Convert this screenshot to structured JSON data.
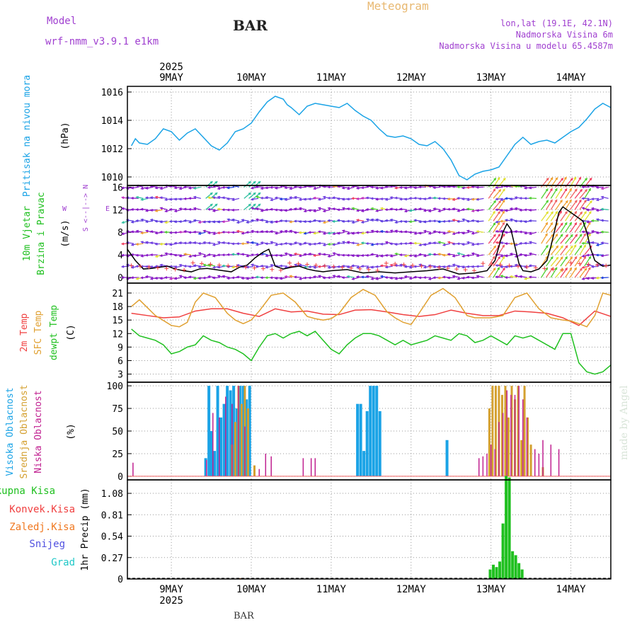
{
  "header": {
    "model_label": "Model",
    "model_value": "wrf-nmm_v3.9.1  e1km",
    "station": "BAR",
    "meteogram": "Meteogram",
    "coords": "lon,lat (19.1E, 42.1N)",
    "elevation": "Nadmorska Visina 6m",
    "model_elevation": "Nadmorska Visina u modelu 65.4587m",
    "footer_station": "BAR",
    "watermark": "made by Angel"
  },
  "colors": {
    "pressure": "#1aa3e6",
    "temp2m": "#f04040",
    "sfc": "#e0a030",
    "dew": "#20c020",
    "high": "#1aa3e6",
    "mid": "#d4a030",
    "low": "#c02090",
    "total": "#20c020",
    "conv": "#f04040",
    "frozen": "#f07820",
    "snow": "#5050e0",
    "hail": "#20c8c8",
    "meteogram": "#e8b870",
    "purple": "#a040d0",
    "wind_speed": "#000000"
  },
  "chart_data": [
    {
      "type": "line",
      "id": "pressure",
      "ylabel_color_lines": [
        "Pritisak na nivou mora"
      ],
      "unit": "(hPa)",
      "yticks": [
        1010,
        1012,
        1014,
        1016
      ],
      "ylim": [
        1009.4,
        1016.4
      ],
      "xlim_days": [
        8.45,
        14.5
      ],
      "day_ticks": [
        "9MAY",
        "10MAY",
        "11MAY",
        "12MAY",
        "13MAY",
        "14MAY"
      ],
      "year_label": "2025",
      "series": [
        {
          "x": [
            8.5,
            8.55,
            8.6,
            8.7,
            8.8,
            8.9,
            9.0,
            9.1,
            9.2,
            9.3,
            9.4,
            9.5,
            9.6,
            9.7,
            9.75,
            9.8,
            9.9,
            10.0,
            10.1,
            10.2,
            10.3,
            10.4,
            10.45,
            10.5,
            10.6,
            10.7,
            10.8,
            10.9,
            11.0,
            11.1,
            11.2,
            11.3,
            11.4,
            11.5,
            11.6,
            11.7,
            11.8,
            11.9,
            12.0,
            12.1,
            12.2,
            12.3,
            12.4,
            12.5,
            12.6,
            12.7,
            12.8,
            12.9,
            13.0,
            13.1,
            13.2,
            13.3,
            13.4,
            13.5,
            13.6,
            13.7,
            13.8,
            13.9,
            14.0,
            14.1,
            14.2,
            14.3,
            14.4,
            14.5
          ],
          "y": [
            1012.2,
            1012.7,
            1012.4,
            1012.3,
            1012.7,
            1013.4,
            1013.2,
            1012.6,
            1013.1,
            1013.4,
            1012.8,
            1012.2,
            1011.9,
            1012.4,
            1012.8,
            1013.2,
            1013.4,
            1013.8,
            1014.6,
            1015.3,
            1015.7,
            1015.5,
            1015.1,
            1014.9,
            1014.4,
            1015.0,
            1015.2,
            1015.1,
            1015.0,
            1014.9,
            1015.2,
            1014.7,
            1014.3,
            1014.0,
            1013.4,
            1012.9,
            1012.8,
            1012.9,
            1012.7,
            1012.3,
            1012.2,
            1012.5,
            1012.0,
            1011.2,
            1010.1,
            1009.8,
            1010.2,
            1010.4,
            1010.5,
            1010.7,
            1011.5,
            1012.3,
            1012.8,
            1012.3,
            1012.5,
            1012.6,
            1012.4,
            1012.8,
            1013.2,
            1013.5,
            1014.1,
            1014.8,
            1015.2,
            1014.9
          ]
        }
      ]
    },
    {
      "type": "line",
      "id": "wind",
      "ylabel_color_lines": [
        "10m Vjetar",
        "Brzina i Pravac"
      ],
      "unit": "(m/s)",
      "compass": {
        "north": "N",
        "south": "S",
        "east": "E",
        "west": "W",
        "arrow": "<--|-->"
      },
      "yticks": [
        0,
        4,
        8,
        12,
        16
      ],
      "ylim": [
        -1,
        16.3
      ],
      "xlim_days": [
        8.45,
        14.5
      ],
      "arrow_rows": [
        0,
        2,
        4,
        6,
        8,
        10,
        12,
        14,
        16
      ],
      "series": [
        {
          "name": "speed",
          "x": [
            8.45,
            8.55,
            8.65,
            8.75,
            8.85,
            8.95,
            9.05,
            9.15,
            9.25,
            9.35,
            9.45,
            9.55,
            9.65,
            9.75,
            9.85,
            9.95,
            10.05,
            10.15,
            10.22,
            10.3,
            10.4,
            10.5,
            10.6,
            10.7,
            10.8,
            10.9,
            11.0,
            11.2,
            11.4,
            11.6,
            11.8,
            12.0,
            12.2,
            12.4,
            12.6,
            12.8,
            12.95,
            13.05,
            13.1,
            13.15,
            13.2,
            13.25,
            13.3,
            13.35,
            13.4,
            13.5,
            13.6,
            13.7,
            13.75,
            13.8,
            13.85,
            13.9,
            13.95,
            14.05,
            14.15,
            14.2,
            14.25,
            14.3,
            14.35,
            14.4,
            14.5
          ],
          "y": [
            5,
            3,
            1.5,
            1.6,
            1.8,
            2.0,
            1.5,
            1.2,
            1.0,
            1.5,
            1.6,
            1.4,
            1.2,
            1.0,
            1.8,
            2.2,
            3.5,
            4.5,
            5.0,
            2.0,
            1.5,
            1.8,
            2.0,
            1.5,
            1.2,
            1.0,
            1.2,
            1.4,
            0.8,
            1.0,
            0.8,
            1.0,
            1.2,
            1.5,
            0.6,
            0.8,
            1.2,
            3.0,
            5.5,
            8.0,
            9.5,
            8.5,
            5.5,
            2.5,
            1.2,
            1.0,
            1.5,
            3.0,
            5.5,
            8.5,
            11.5,
            12.5,
            12.0,
            11.0,
            10.0,
            8.0,
            5.0,
            3.0,
            2.5,
            2.0,
            2.2
          ]
        }
      ]
    },
    {
      "type": "line",
      "id": "temperature",
      "ylabel_lines": [
        "2m Temp",
        "SFC Temp",
        "dewpt Temp"
      ],
      "unit": "(C)",
      "yticks": [
        3,
        6,
        9,
        12,
        15,
        18,
        21
      ],
      "ylim": [
        1.2,
        23.2
      ],
      "xlim_days": [
        8.45,
        14.5
      ],
      "series": [
        {
          "name": "2m Temp",
          "x": [
            8.5,
            8.7,
            8.9,
            9.1,
            9.3,
            9.5,
            9.7,
            9.9,
            10.1,
            10.3,
            10.5,
            10.7,
            10.9,
            11.1,
            11.3,
            11.5,
            11.7,
            11.9,
            12.1,
            12.3,
            12.5,
            12.7,
            12.9,
            13.1,
            13.3,
            13.5,
            13.7,
            13.9,
            14.1,
            14.3,
            14.5
          ],
          "y": [
            16.5,
            16.0,
            15.5,
            15.7,
            17.0,
            17.5,
            17.5,
            16.5,
            15.8,
            17.5,
            16.8,
            17.0,
            16.3,
            16.2,
            17.2,
            17.3,
            16.8,
            16.2,
            15.8,
            16.2,
            17.2,
            16.5,
            16.0,
            16.0,
            17.0,
            16.8,
            16.5,
            15.5,
            13.8,
            17.0,
            15.8
          ]
        },
        {
          "name": "SFC Temp",
          "x": [
            8.5,
            8.6,
            8.8,
            9.0,
            9.1,
            9.2,
            9.3,
            9.4,
            9.55,
            9.7,
            9.8,
            9.9,
            10.0,
            10.1,
            10.25,
            10.4,
            10.55,
            10.7,
            10.8,
            10.9,
            11.0,
            11.1,
            11.25,
            11.4,
            11.55,
            11.7,
            11.8,
            11.9,
            12.0,
            12.1,
            12.25,
            12.4,
            12.55,
            12.7,
            12.8,
            12.9,
            13.0,
            13.15,
            13.3,
            13.45,
            13.6,
            13.75,
            13.9,
            14.0,
            14.1,
            14.2,
            14.3,
            14.4,
            14.5
          ],
          "y": [
            18.0,
            19.5,
            16.0,
            13.8,
            13.5,
            14.5,
            19.0,
            21.0,
            20.0,
            16.5,
            15.0,
            14.2,
            15.0,
            17.0,
            20.5,
            21.0,
            19.0,
            15.8,
            15.3,
            15.0,
            15.3,
            16.5,
            20.0,
            21.8,
            20.5,
            16.8,
            15.5,
            14.5,
            14.0,
            16.5,
            20.5,
            22.0,
            20.0,
            16.0,
            15.5,
            15.5,
            15.5,
            16.0,
            20.0,
            21.0,
            17.5,
            15.5,
            15.0,
            14.8,
            14.2,
            13.5,
            16.0,
            21.0,
            20.5
          ]
        },
        {
          "name": "dewpt Temp",
          "x": [
            8.5,
            8.6,
            8.7,
            8.8,
            8.9,
            9.0,
            9.1,
            9.2,
            9.3,
            9.4,
            9.5,
            9.6,
            9.7,
            9.8,
            9.9,
            10.0,
            10.1,
            10.2,
            10.3,
            10.4,
            10.5,
            10.6,
            10.7,
            10.8,
            10.9,
            11.0,
            11.1,
            11.2,
            11.3,
            11.4,
            11.5,
            11.6,
            11.7,
            11.8,
            11.9,
            12.0,
            12.1,
            12.2,
            12.3,
            12.4,
            12.5,
            12.6,
            12.7,
            12.8,
            12.9,
            13.0,
            13.1,
            13.2,
            13.3,
            13.4,
            13.5,
            13.6,
            13.7,
            13.8,
            13.9,
            14.0,
            14.1,
            14.2,
            14.3,
            14.4,
            14.5
          ],
          "y": [
            13.0,
            11.5,
            11.0,
            10.5,
            9.5,
            7.5,
            8.0,
            9.0,
            9.5,
            11.5,
            10.5,
            10.0,
            9.0,
            8.5,
            7.5,
            6.0,
            9.0,
            11.5,
            12.0,
            11.0,
            12.0,
            12.5,
            11.5,
            12.5,
            10.5,
            8.5,
            7.5,
            9.5,
            11.0,
            12.0,
            12.0,
            11.5,
            10.5,
            9.5,
            10.5,
            9.5,
            10.0,
            10.5,
            11.5,
            11.0,
            10.5,
            12.0,
            11.5,
            10.0,
            10.5,
            11.5,
            10.5,
            9.5,
            11.5,
            11.0,
            11.5,
            10.5,
            9.5,
            8.5,
            12.0,
            12.0,
            5.5,
            3.5,
            3.0,
            3.5,
            5.0
          ]
        }
      ]
    },
    {
      "type": "bar",
      "id": "clouds",
      "ylabel_lines": [
        "Visoka Oblacnost",
        "Srednja Oblacnost",
        "Niska  Oblacnost"
      ],
      "unit": "(%)",
      "yticks": [
        0,
        25,
        50,
        75,
        100
      ],
      "ylim": [
        -4,
        104
      ],
      "xlim_days": [
        8.45,
        14.5
      ],
      "series": [
        {
          "name": "Visoka Oblacnost",
          "x": [
            9.43,
            9.47,
            9.5,
            9.54,
            9.58,
            9.62,
            9.66,
            9.7,
            9.74,
            9.78,
            9.82,
            9.86,
            9.9,
            9.94,
            9.98,
            11.33,
            11.37,
            11.41,
            11.45,
            11.49,
            11.53,
            11.57,
            11.61,
            12.45
          ],
          "values": [
            20,
            100,
            50,
            28,
            100,
            65,
            80,
            100,
            95,
            100,
            75,
            100,
            100,
            85,
            100,
            80,
            80,
            28,
            72,
            100,
            100,
            100,
            72,
            40
          ]
        },
        {
          "name": "Srednja Oblacnost",
          "x": [
            9.76,
            9.8,
            9.84,
            9.88,
            9.92,
            9.96,
            10.04,
            12.98,
            13.02,
            13.06,
            13.1,
            13.14,
            13.18,
            13.22,
            13.26,
            13.3,
            13.34,
            13.38,
            13.42,
            13.46,
            13.5,
            13.65
          ],
          "values": [
            35,
            60,
            100,
            80,
            100,
            75,
            12,
            75,
            100,
            100,
            100,
            90,
            100,
            65,
            100,
            85,
            100,
            40,
            100,
            65,
            35,
            10
          ]
        },
        {
          "name": "Niska  Oblacnost",
          "x": [
            8.52,
            9.44,
            9.52,
            9.6,
            9.68,
            9.76,
            9.84,
            9.92,
            10.1,
            10.18,
            10.25,
            10.65,
            10.75,
            10.8,
            12.85,
            12.9,
            12.95,
            13.0,
            13.05,
            13.1,
            13.15,
            13.2,
            13.25,
            13.3,
            13.35,
            13.4,
            13.45,
            13.55,
            13.6,
            13.65,
            13.75,
            13.85
          ],
          "values": [
            15,
            18,
            70,
            65,
            88,
            80,
            100,
            55,
            8,
            25,
            22,
            20,
            20,
            20,
            20,
            22,
            25,
            35,
            30,
            60,
            70,
            95,
            90,
            90,
            100,
            85,
            65,
            30,
            25,
            40,
            35,
            30
          ]
        }
      ]
    },
    {
      "type": "bar",
      "id": "precip",
      "legend": [
        "Ukupna  Kisa",
        "Konvek.Kisa",
        "Zaledj.Kisa",
        "Snijeg",
        "Grad"
      ],
      "ylabel": "1hr Precip (mm)",
      "yticks": [
        0,
        0.27,
        0.54,
        0.81,
        1.08
      ],
      "ylim": [
        0,
        1.25
      ],
      "xlim_days": [
        8.45,
        14.5
      ],
      "series": [
        {
          "name": "Ukupna  Kisa",
          "x": [
            12.99,
            13.03,
            13.07,
            13.11,
            13.15,
            13.19,
            13.23,
            13.27,
            13.31,
            13.35,
            13.39
          ],
          "values": [
            0.12,
            0.18,
            0.15,
            0.22,
            0.7,
            1.3,
            1.28,
            0.35,
            0.3,
            0.2,
            0.12
          ]
        },
        {
          "name": "Zaledj.Kisa",
          "x": [
            9.86,
            10.82
          ],
          "values": [
            0.01,
            0.01
          ]
        }
      ]
    }
  ]
}
